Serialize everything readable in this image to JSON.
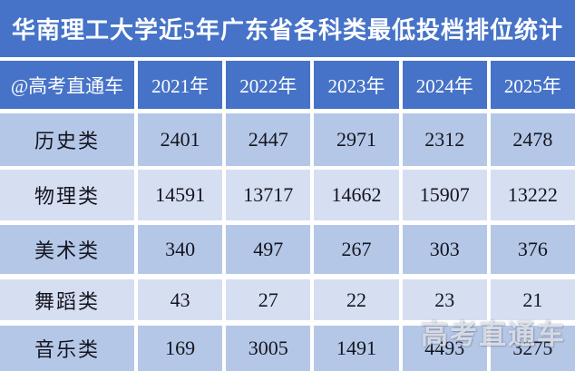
{
  "title": "华南理工大学近5年广东省各科类最低投档排位统计",
  "watermark": "高考直通车",
  "colors": {
    "header_blue": "#4673c8",
    "row_dark": "#b4c7e7",
    "row_light": "#d6def2",
    "title_text": "#ffffff",
    "data_text": "#15151f",
    "separator": "#ffffff"
  },
  "chart_data": {
    "type": "table",
    "title": "华南理工大学近5年广东省各科类最低投档排位统计",
    "source_label": "@高考直通车",
    "columns": [
      "@高考直通车",
      "2021年",
      "2022年",
      "2023年",
      "2024年",
      "2025年"
    ],
    "rows": [
      {
        "category": "历史类",
        "values": [
          2401,
          2447,
          2971,
          2312,
          2478
        ]
      },
      {
        "category": "物理类",
        "values": [
          14591,
          13717,
          14662,
          15907,
          13222
        ]
      },
      {
        "category": "美术类",
        "values": [
          340,
          497,
          267,
          303,
          376
        ]
      },
      {
        "category": "舞蹈类",
        "values": [
          43,
          27,
          22,
          23,
          21
        ]
      },
      {
        "category": "音乐类",
        "values": [
          169,
          3005,
          1491,
          4493,
          3275
        ]
      }
    ]
  }
}
